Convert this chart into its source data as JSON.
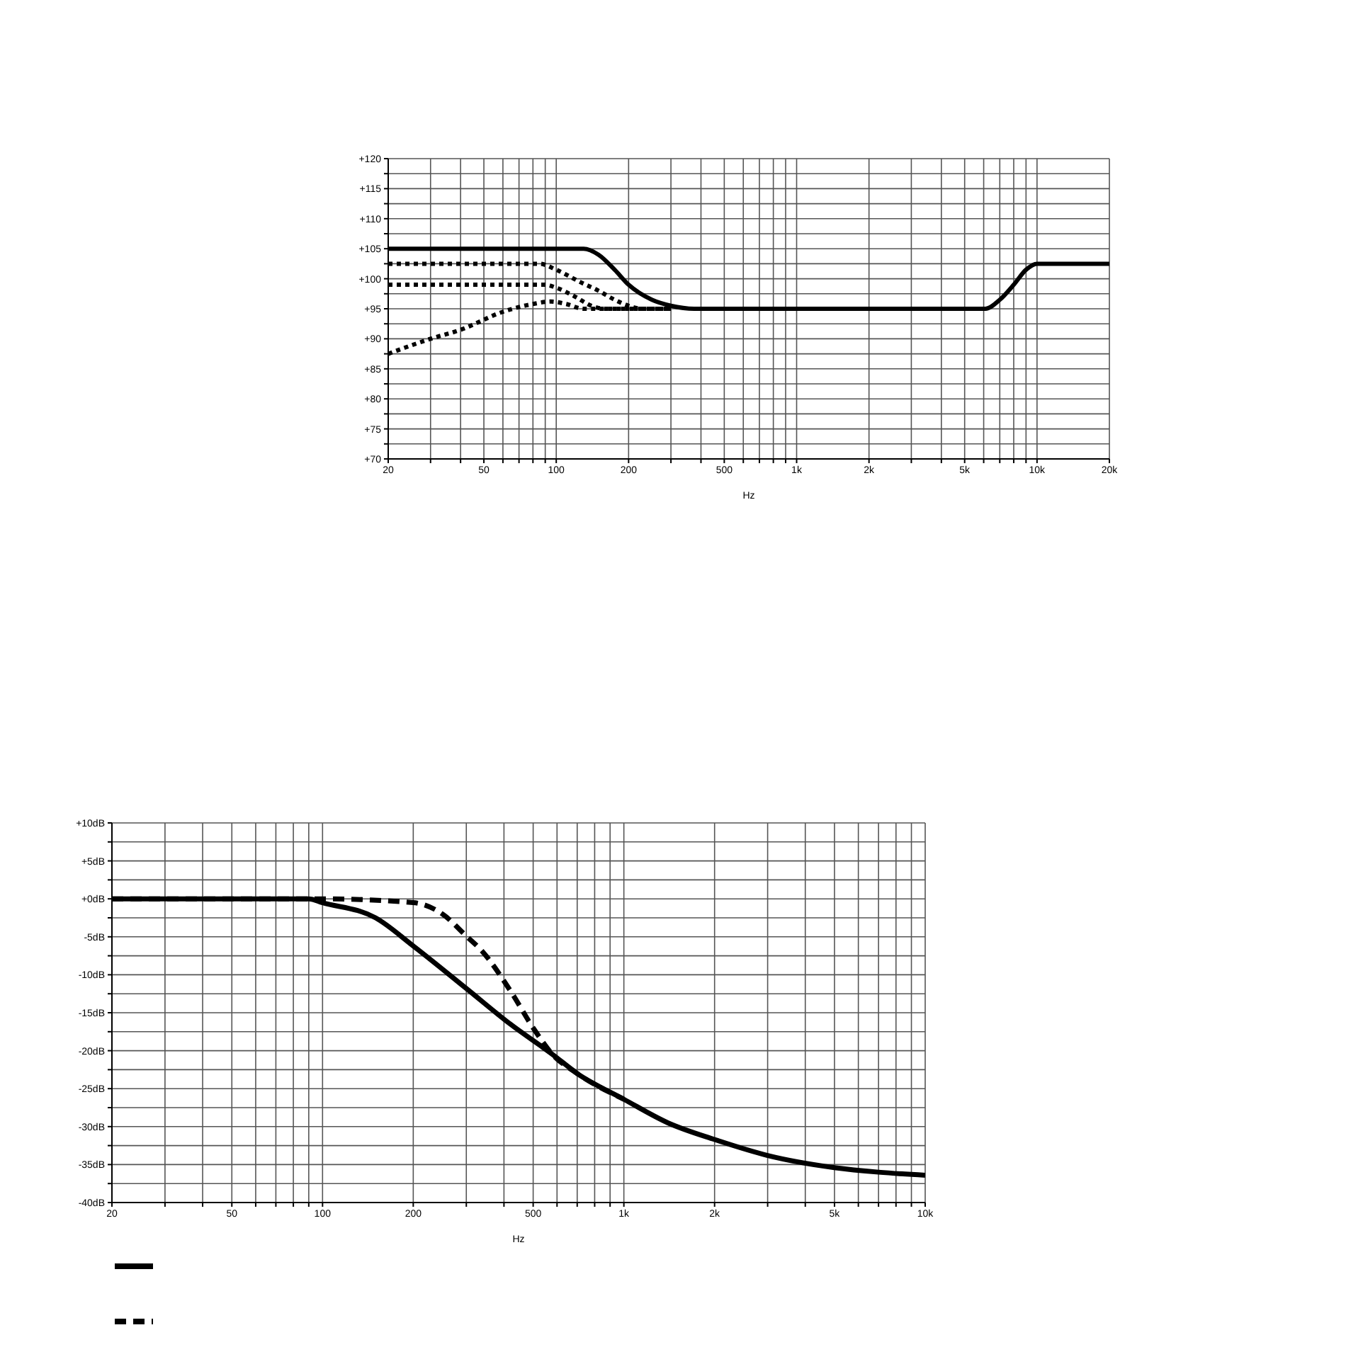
{
  "chart_data": [
    {
      "type": "line",
      "xlabel": "Hz",
      "log": "x",
      "grid": true,
      "marker": "none",
      "xlim": [
        20,
        20000
      ],
      "xticks": [
        20,
        {
          "value": 30,
          "label": null
        },
        {
          "value": 40,
          "label": null
        },
        50,
        {
          "value": 60,
          "label": null
        },
        {
          "value": 70,
          "label": null
        },
        {
          "value": 80,
          "label": null
        },
        {
          "value": 90,
          "label": null
        },
        100,
        200,
        {
          "value": 300,
          "label": null
        },
        {
          "value": 400,
          "label": null
        },
        500,
        {
          "value": 600,
          "label": null
        },
        {
          "value": 700,
          "label": null
        },
        {
          "value": 800,
          "label": null
        },
        {
          "value": 900,
          "label": null
        },
        {
          "value": 1000,
          "label": "1k"
        },
        {
          "value": 2000,
          "label": "2k"
        },
        {
          "value": 3000,
          "label": null
        },
        {
          "value": 4000,
          "label": null
        },
        {
          "value": 5000,
          "label": "5k"
        },
        {
          "value": 6000,
          "label": null
        },
        {
          "value": 7000,
          "label": null
        },
        {
          "value": 8000,
          "label": null
        },
        {
          "value": 9000,
          "label": null
        },
        {
          "value": 10000,
          "label": "10k"
        },
        {
          "value": 20000,
          "label": "20k"
        }
      ],
      "ylim": [
        70,
        120
      ],
      "yticks": [
        {
          "value": 70,
          "label": "+70"
        },
        {
          "value": 72.5,
          "label": null
        },
        {
          "value": 75,
          "label": "+75"
        },
        {
          "value": 77.5,
          "label": null
        },
        {
          "value": 80,
          "label": "+80"
        },
        {
          "value": 82.5,
          "label": null
        },
        {
          "value": 85,
          "label": "+85"
        },
        {
          "value": 87.5,
          "label": null
        },
        {
          "value": 90,
          "label": "+90"
        },
        {
          "value": 92.5,
          "label": null
        },
        {
          "value": 95,
          "label": "+95"
        },
        {
          "value": 97.5,
          "label": null
        },
        {
          "value": 100,
          "label": "+100"
        },
        {
          "value": 102.5,
          "label": null
        },
        {
          "value": 105,
          "label": "+105"
        },
        {
          "value": 107.5,
          "label": null
        },
        {
          "value": 110,
          "label": "+110"
        },
        {
          "value": 112.5,
          "label": null
        },
        {
          "value": 115,
          "label": "+115"
        },
        {
          "value": 117.5,
          "label": null
        },
        {
          "value": 120,
          "label": "+120"
        }
      ],
      "series": [
        {
          "color": "#000000",
          "line_style": "solid",
          "x": [
            20,
            130,
            150,
            175,
            200,
            250,
            300,
            375,
            6100,
            7000,
            8000,
            9000,
            10000,
            20000
          ],
          "values": [
            105,
            105,
            104,
            101.5,
            99,
            96.5,
            95.5,
            95,
            95,
            96.5,
            99,
            101.5,
            102.5,
            102.5
          ]
        },
        {
          "color": "#000000",
          "line_style": "dotted",
          "x": [
            20,
            85,
            100,
            125,
            150,
            175,
            200,
            230,
            300
          ],
          "values": [
            102.5,
            102.5,
            101.5,
            99.5,
            98,
            96.5,
            95.5,
            95,
            95
          ]
        },
        {
          "color": "#000000",
          "line_style": "dotted",
          "x": [
            20,
            90,
            100,
            120,
            140,
            160,
            300
          ],
          "values": [
            99,
            99,
            98.5,
            97,
            95.5,
            95,
            95
          ]
        },
        {
          "color": "#000000",
          "line_style": "dotted",
          "x": [
            20,
            30,
            40,
            60,
            80,
            95,
            110,
            130,
            300
          ],
          "values": [
            87.5,
            90,
            91.5,
            94.5,
            95.8,
            96.2,
            95.8,
            95,
            95
          ]
        }
      ]
    },
    {
      "type": "line",
      "xlabel": "Hz",
      "log": "x",
      "grid": true,
      "marker": "none",
      "xlim": [
        20,
        10000
      ],
      "xticks": [
        20,
        {
          "value": 30,
          "label": null
        },
        {
          "value": 40,
          "label": null
        },
        50,
        {
          "value": 60,
          "label": null
        },
        {
          "value": 70,
          "label": null
        },
        {
          "value": 80,
          "label": null
        },
        {
          "value": 90,
          "label": null
        },
        100,
        200,
        {
          "value": 300,
          "label": null
        },
        {
          "value": 400,
          "label": null
        },
        500,
        {
          "value": 600,
          "label": null
        },
        {
          "value": 700,
          "label": null
        },
        {
          "value": 800,
          "label": null
        },
        {
          "value": 900,
          "label": null
        },
        {
          "value": 1000,
          "label": "1k"
        },
        {
          "value": 2000,
          "label": "2k"
        },
        {
          "value": 3000,
          "label": null
        },
        {
          "value": 4000,
          "label": null
        },
        {
          "value": 5000,
          "label": "5k"
        },
        {
          "value": 6000,
          "label": null
        },
        {
          "value": 7000,
          "label": null
        },
        {
          "value": 8000,
          "label": null
        },
        {
          "value": 9000,
          "label": null
        },
        {
          "value": 10000,
          "label": "10k"
        }
      ],
      "ylim": [
        -40,
        10
      ],
      "yticks": [
        {
          "value": -40,
          "label": "-40dB"
        },
        {
          "value": -37.5,
          "label": null
        },
        {
          "value": -35,
          "label": "-35dB"
        },
        {
          "value": -32.5,
          "label": null
        },
        {
          "value": -30,
          "label": "-30dB"
        },
        {
          "value": -27.5,
          "label": null
        },
        {
          "value": -25,
          "label": "-25dB"
        },
        {
          "value": -22.5,
          "label": null
        },
        {
          "value": -20,
          "label": "-20dB"
        },
        {
          "value": -17.5,
          "label": null
        },
        {
          "value": -15,
          "label": "-15dB"
        },
        {
          "value": -12.5,
          "label": null
        },
        {
          "value": -10,
          "label": "-10dB"
        },
        {
          "value": -7.5,
          "label": null
        },
        {
          "value": -5,
          "label": "-5dB"
        },
        {
          "value": -2.5,
          "label": null
        },
        {
          "value": 0,
          "label": "+0dB"
        },
        {
          "value": 2.5,
          "label": null
        },
        {
          "value": 5,
          "label": "+5dB"
        },
        {
          "value": 7.5,
          "label": null
        },
        {
          "value": 10,
          "label": "+10dB"
        }
      ],
      "series": [
        {
          "color": "#000000",
          "line_style": "solid",
          "x": [
            20,
            90,
            100,
            150,
            200,
            300,
            420,
            580,
            700,
            1000,
            1400,
            2000,
            3000,
            5000,
            7000,
            10000
          ],
          "values": [
            0,
            0,
            -0.5,
            -2.5,
            -6.2,
            -11.8,
            -16.5,
            -20.5,
            -23,
            -26.4,
            -29.5,
            -31.7,
            -33.8,
            -35.4,
            -36,
            -36.4
          ]
        },
        {
          "color": "#000000",
          "line_style": "dashed",
          "x": [
            20,
            100,
            200,
            250,
            300,
            337,
            420,
            500,
            580,
            700,
            1000
          ],
          "values": [
            0,
            0,
            -0.5,
            -2,
            -4.9,
            -6.8,
            -12.1,
            -17,
            -20.5,
            -23,
            -26.4
          ]
        }
      ]
    }
  ]
}
